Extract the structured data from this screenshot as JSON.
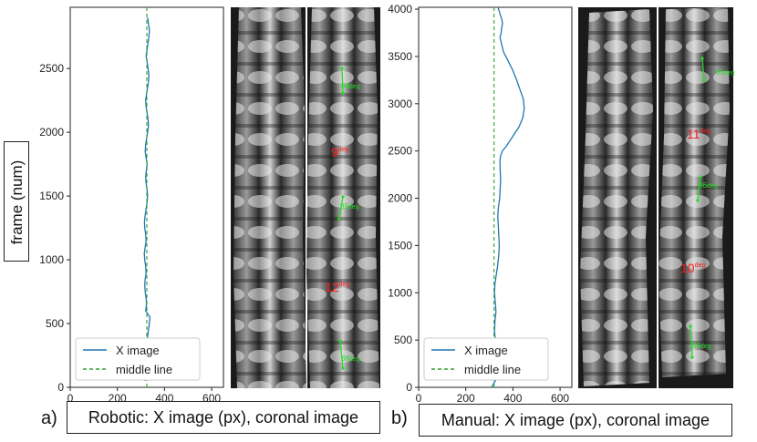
{
  "y_axis_label": "frame (num)",
  "captions": {
    "a_letter": "a)",
    "a_text": "Robotic: X image (px), coronal image",
    "b_letter": "b)",
    "b_text": "Manual: X image (px), coronal image"
  },
  "colors": {
    "x_image": "#1f77b4",
    "middle_line": "#2ca02c",
    "annotation_red": "#ff1a1a",
    "annotation_green": "#22dd22"
  },
  "chart_data": [
    {
      "type": "line",
      "panel": "a",
      "xlim": [
        0,
        650
      ],
      "ylim": [
        0,
        2980
      ],
      "xticks": [
        0,
        200,
        400,
        600
      ],
      "yticks": [
        0,
        500,
        1000,
        1500,
        2000,
        2500
      ],
      "legend": {
        "position": "lower-left",
        "entries": [
          "X image",
          "middle line"
        ]
      },
      "series": [
        {
          "name": "X image",
          "style": "solid",
          "x": [
            338,
            336,
            332,
            328,
            325,
            321,
            318,
            322,
            326,
            322,
            318,
            320,
            324,
            322,
            318,
            316,
            318,
            322,
            320,
            316,
            314,
            318,
            322,
            320,
            316,
            315,
            318,
            322,
            326,
            328,
            326,
            322,
            320,
            323,
            326,
            322,
            318,
            320,
            324,
            328,
            332,
            330,
            326,
            322,
            320,
            324,
            328,
            332,
            334,
            330,
            326,
            322,
            326,
            330,
            334,
            336,
            332,
            328
          ],
          "y": [
            550,
            500,
            450,
            400,
            350,
            300,
            250,
            200,
            150,
            100,
            50,
            600,
            650,
            700,
            750,
            800,
            850,
            900,
            950,
            1000,
            1050,
            1100,
            1150,
            1200,
            1250,
            1300,
            1350,
            1400,
            1450,
            1500,
            1550,
            1600,
            1650,
            1700,
            1750,
            1800,
            1850,
            1900,
            1950,
            2000,
            2050,
            2100,
            2150,
            2200,
            2250,
            2300,
            2350,
            2400,
            2450,
            2500,
            2550,
            2600,
            2650,
            2700,
            2750,
            2800,
            2850,
            2900
          ]
        },
        {
          "name": "middle line",
          "style": "dashed",
          "x": [
            325,
            325
          ],
          "y": [
            0,
            2980
          ]
        }
      ]
    },
    {
      "type": "line",
      "panel": "b",
      "xlim": [
        0,
        650
      ],
      "ylim": [
        0,
        4020
      ],
      "xticks": [
        0,
        200,
        400,
        600
      ],
      "yticks": [
        0,
        500,
        1000,
        1500,
        2000,
        2500,
        3000,
        3500,
        4000
      ],
      "legend": {
        "position": "lower-left",
        "entries": [
          "X image",
          "middle line"
        ]
      },
      "series": [
        {
          "name": "X image",
          "style": "solid",
          "x": [
            310,
            320,
            335,
            345,
            345,
            335,
            325,
            322,
            324,
            328,
            325,
            322,
            324,
            330,
            336,
            340,
            342,
            340,
            338,
            336,
            338,
            344,
            346,
            348,
            346,
            345,
            348,
            355,
            372,
            398,
            425,
            442,
            448,
            444,
            430,
            416,
            400,
            380,
            360,
            350,
            345,
            350,
            352,
            356,
            352,
            345,
            342,
            338,
            340
          ],
          "y": [
            0,
            50,
            100,
            200,
            300,
            400,
            500,
            600,
            700,
            800,
            900,
            1000,
            1100,
            1200,
            1300,
            1400,
            1500,
            1600,
            1700,
            1800,
            1900,
            2000,
            2100,
            2200,
            2300,
            2400,
            2450,
            2500,
            2550,
            2650,
            2750,
            2850,
            2950,
            3050,
            3150,
            3250,
            3350,
            3450,
            3550,
            3650,
            3700,
            3750,
            3800,
            3850,
            3900,
            3950,
            3980,
            4000,
            4020
          ]
        },
        {
          "name": "middle line",
          "style": "dashed",
          "x": [
            320,
            320
          ],
          "y": [
            0,
            4020
          ]
        }
      ]
    }
  ],
  "image_annotations": {
    "a": [
      {
        "value": "9",
        "unit": "deg",
        "color": "red"
      },
      {
        "value": "12",
        "unit": "deg",
        "color": "red"
      },
      {
        "value": "88",
        "unit": "deg",
        "color": "green"
      },
      {
        "value": "89",
        "unit": "deg",
        "color": "green"
      },
      {
        "value": "88",
        "unit": "deg",
        "color": "green"
      }
    ],
    "b": [
      {
        "value": "11",
        "unit": "deg",
        "color": "red"
      },
      {
        "value": "10",
        "unit": "deg",
        "color": "red"
      },
      {
        "value": "85",
        "unit": "deg",
        "color": "green"
      },
      {
        "value": "86",
        "unit": "deg",
        "color": "green"
      },
      {
        "value": "86",
        "unit": "deg",
        "color": "green"
      }
    ]
  }
}
